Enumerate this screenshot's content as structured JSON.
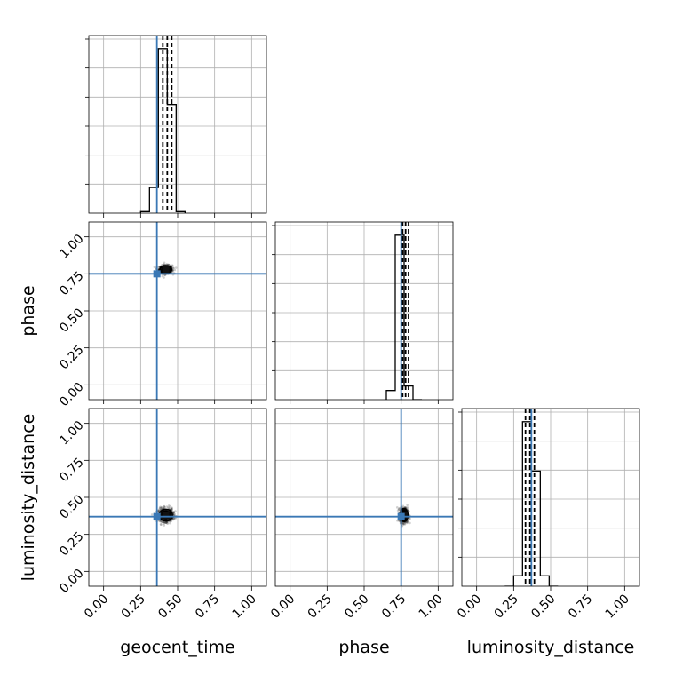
{
  "chart_data": {
    "type": "corner",
    "parameters": [
      "geocent_time",
      "phase",
      "luminosity_distance"
    ],
    "axis_range": [
      -0.1,
      1.1
    ],
    "tick_labels": [
      "0.00",
      "0.25",
      "0.50",
      "0.75",
      "1.00"
    ],
    "grid": true,
    "truths": {
      "geocent_time": 0.36,
      "phase": 0.75,
      "luminosity_distance": 0.37
    },
    "marginals": [
      {
        "parameter": "geocent_time",
        "bin_edges": [
          0.25,
          0.31,
          0.37,
          0.43,
          0.49,
          0.55
        ],
        "counts": [
          0.05,
          0.85,
          5.45,
          3.6,
          0.05
        ],
        "quantiles": [
          0.4,
          0.43,
          0.46
        ]
      },
      {
        "parameter": "phase",
        "bin_edges": [
          0.65,
          0.71,
          0.77,
          0.83,
          0.89
        ],
        "counts": [
          0.3,
          5.4,
          0.45,
          0.0
        ],
        "quantiles": [
          0.76,
          0.78,
          0.8
        ]
      },
      {
        "parameter": "luminosity_distance",
        "bin_edges": [
          0.19,
          0.25,
          0.31,
          0.37,
          0.43,
          0.49,
          0.55
        ],
        "counts": [
          0.0,
          0.35,
          5.5,
          3.85,
          0.35,
          0.0
        ],
        "quantiles": [
          0.33,
          0.36,
          0.39
        ]
      }
    ],
    "joint": [
      {
        "x": "geocent_time",
        "y": "phase",
        "center": [
          0.42,
          0.78
        ],
        "spread": [
          0.04,
          0.025
        ]
      },
      {
        "x": "geocent_time",
        "y": "luminosity_distance",
        "center": [
          0.42,
          0.38
        ],
        "spread": [
          0.045,
          0.04
        ]
      },
      {
        "x": "phase",
        "y": "luminosity_distance",
        "center": [
          0.77,
          0.38
        ],
        "spread": [
          0.025,
          0.045
        ]
      }
    ]
  }
}
